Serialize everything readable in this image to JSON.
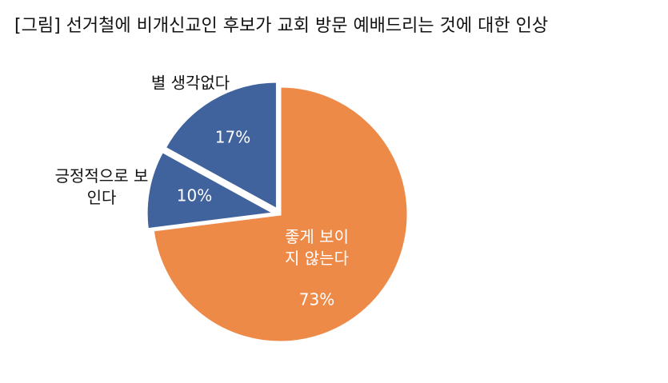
{
  "chart_data": {
    "type": "pie",
    "title": "[그림] 선거철에 비개신교인 후보가 교회 방문 예배드리는 것에 대한 인상",
    "categories": [
      "좋게 보이지 않는다",
      "긍정적으로 보인다",
      "별 생각없다"
    ],
    "values": [
      73,
      10,
      17
    ],
    "value_labels": [
      "73%",
      "10%",
      "17%"
    ],
    "colors": [
      "#ee8a48",
      "#41639d",
      "#41639d"
    ]
  }
}
